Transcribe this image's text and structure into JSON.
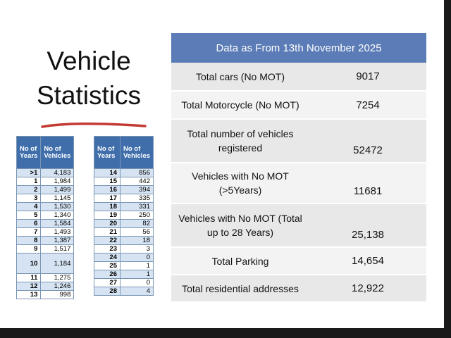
{
  "title_line1": "Vehicle",
  "title_line2": "Statistics",
  "year_table_headers": {
    "years": "No of Years",
    "vehicles_left": "No of Vehicles",
    "vehicles_right": "No of Vehicles"
  },
  "left_rows": [
    {
      "year": ">1",
      "count": "4,183"
    },
    {
      "year": "1",
      "count": "1,984"
    },
    {
      "year": "2",
      "count": "1,499"
    },
    {
      "year": "3",
      "count": "1,145"
    },
    {
      "year": "4",
      "count": "1,530"
    },
    {
      "year": "5",
      "count": "1,340"
    },
    {
      "year": "6",
      "count": "1,584"
    },
    {
      "year": "7",
      "count": "1,493"
    },
    {
      "year": "8",
      "count": "1,387"
    },
    {
      "year": "9",
      "count": "1,517"
    },
    {
      "year": "10",
      "count": "1,184"
    },
    {
      "year": "11",
      "count": "1,275"
    },
    {
      "year": "12",
      "count": "1,246"
    },
    {
      "year": "13",
      "count": "998"
    }
  ],
  "right_rows": [
    {
      "year": "14",
      "count": "856"
    },
    {
      "year": "15",
      "count": "442"
    },
    {
      "year": "16",
      "count": "394"
    },
    {
      "year": "17",
      "count": "335"
    },
    {
      "year": "18",
      "count": "331"
    },
    {
      "year": "19",
      "count": "250"
    },
    {
      "year": "20",
      "count": "82"
    },
    {
      "year": "21",
      "count": "56"
    },
    {
      "year": "22",
      "count": "18"
    },
    {
      "year": "23",
      "count": "3"
    },
    {
      "year": "24",
      "count": "0"
    },
    {
      "year": "25",
      "count": "1"
    },
    {
      "year": "26",
      "count": "1"
    },
    {
      "year": "27",
      "count": "0"
    },
    {
      "year": "28",
      "count": "4"
    }
  ],
  "stats_header": "Data as From 13th November 2025",
  "stats_rows": [
    {
      "label": "Total cars (No MOT)",
      "value": "9017"
    },
    {
      "label": "Total Motorcycle (No MOT)",
      "value": "7254"
    },
    {
      "label": "Total number of vehicles registered",
      "value": "52472"
    },
    {
      "label": "Vehicles with No MOT (>5Years)",
      "value": "11681"
    },
    {
      "label": "Vehicles with No MOT (Total up to 28 Years)",
      "value": "25,138"
    },
    {
      "label": "Total Parking",
      "value": "14,654"
    },
    {
      "label": "Total residential addresses",
      "value": "12,922"
    }
  ]
}
